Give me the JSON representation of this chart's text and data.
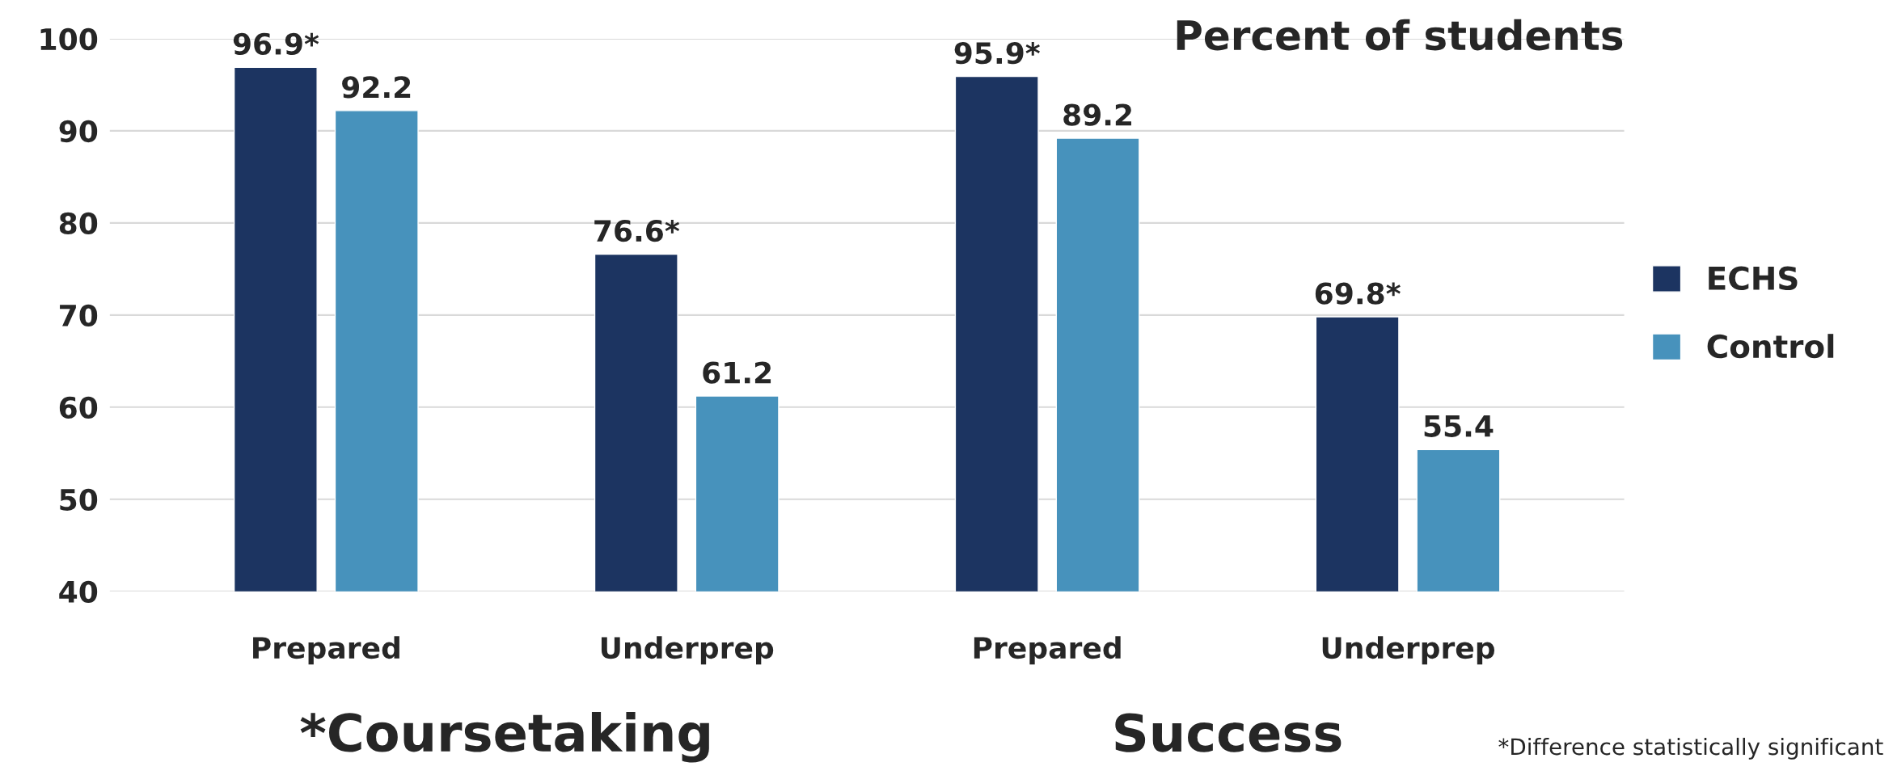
{
  "chart_data": {
    "type": "bar",
    "title": "Percent of students",
    "categories": [
      "Prepared",
      "Underprep",
      "Prepared",
      "Underprep"
    ],
    "series": [
      {
        "name": "ECHS",
        "color": "#1c3461",
        "values": [
          96.9,
          76.6,
          95.9,
          69.8
        ],
        "value_labels": [
          "96.9*",
          "76.6*",
          "95.9*",
          "69.8*"
        ]
      },
      {
        "name": "Control",
        "color": "#4792bc",
        "values": [
          92.2,
          61.2,
          89.2,
          55.4
        ],
        "value_labels": [
          "92.2",
          "61.2",
          "89.2",
          "55.4"
        ]
      }
    ],
    "ylim": [
      40,
      100
    ],
    "yticks": [
      40,
      50,
      60,
      70,
      80,
      90,
      100
    ],
    "grid": "y",
    "legend": "right",
    "annotations": [
      "*Coursetaking",
      "Success",
      "*Difference statistically significant"
    ]
  }
}
